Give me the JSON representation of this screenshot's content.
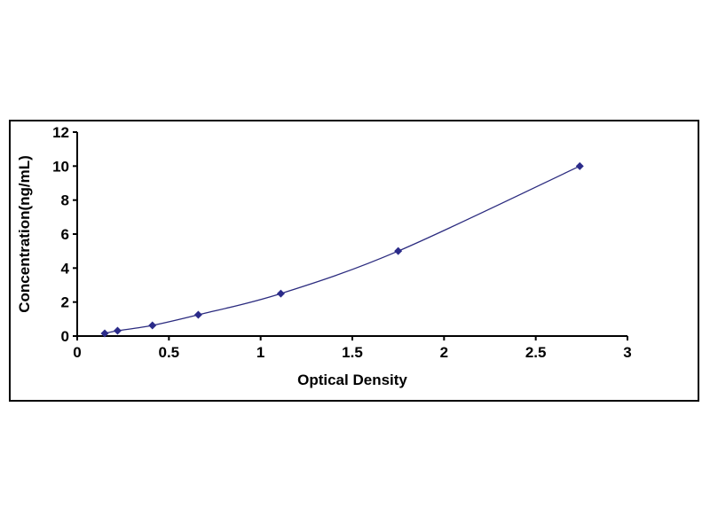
{
  "chart_data": {
    "type": "line",
    "title": "",
    "xlabel": "Optical Density",
    "ylabel": "Concentration(ng/mL)",
    "x": [
      0.15,
      0.22,
      0.41,
      0.66,
      1.11,
      1.75,
      2.74
    ],
    "y": [
      0.156,
      0.312,
      0.625,
      1.25,
      2.5,
      5,
      10
    ],
    "xlim": [
      0,
      3
    ],
    "ylim": [
      0,
      12
    ],
    "xticks": [
      0,
      0.5,
      1,
      1.5,
      2,
      2.5,
      3
    ],
    "yticks": [
      0,
      2,
      4,
      6,
      8,
      10,
      12
    ],
    "grid": false,
    "legend": "none",
    "marker": "diamond",
    "line_color": "#2b2b7f",
    "marker_color": "#2b2b8a"
  }
}
